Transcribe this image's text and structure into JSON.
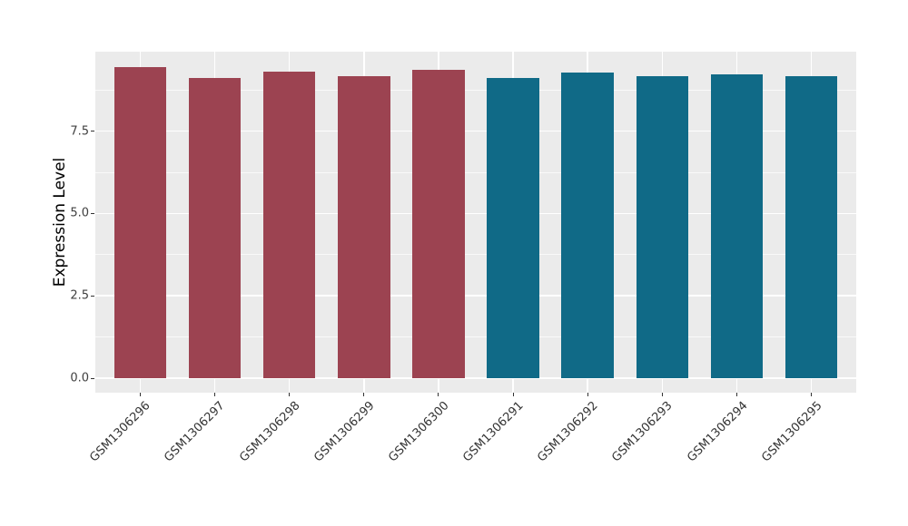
{
  "figure": {
    "background": "#FFFFFF"
  },
  "chart_data": {
    "type": "bar",
    "title": "",
    "xlabel": "",
    "ylabel": "Expression Level",
    "categories": [
      "GSM1306296",
      "GSM1306297",
      "GSM1306298",
      "GSM1306299",
      "GSM1306300",
      "GSM1306291",
      "GSM1306292",
      "GSM1306293",
      "GSM1306294",
      "GSM1306295"
    ],
    "values": [
      9.44,
      9.11,
      9.31,
      9.18,
      9.35,
      9.1,
      9.29,
      9.16,
      9.22,
      9.18
    ],
    "bar_colors": [
      "#9C4351",
      "#9C4351",
      "#9C4351",
      "#9C4351",
      "#9C4351",
      "#106A87",
      "#106A87",
      "#106A87",
      "#106A87",
      "#106A87"
    ],
    "group_colors": {
      "left_group": "#9C4351",
      "right_group": "#106A87"
    },
    "y_ticks": [
      0.0,
      2.5,
      5.0,
      7.5
    ],
    "y_tick_labels": [
      "0.0",
      "2.5",
      "5.0",
      "7.5"
    ],
    "y_minor_ticks": [
      1.25,
      3.75,
      6.25,
      8.75
    ],
    "ylim": [
      0,
      9.91
    ],
    "bar_width_fraction": 0.7,
    "x_tick_rotation_deg": 45,
    "grid": true,
    "legend": "none",
    "panel_background": "#EBEBEB",
    "grid_color": "#FFFFFF",
    "axis_text_color": "#404040",
    "axis_title_color": "#000000"
  }
}
